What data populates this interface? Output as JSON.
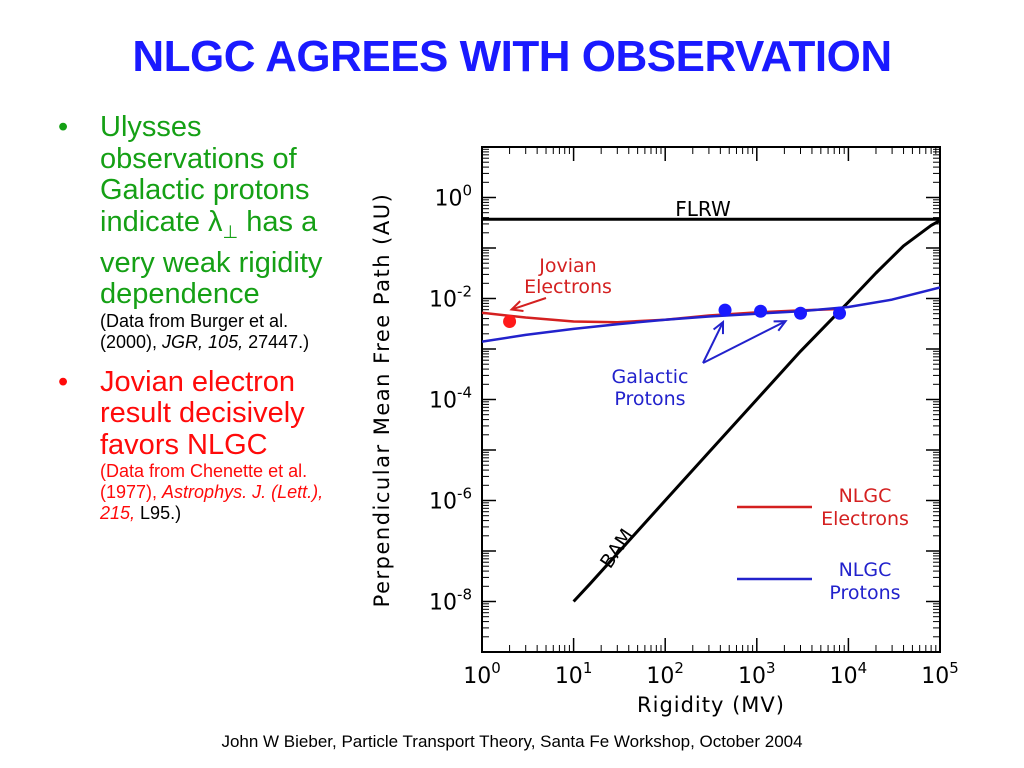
{
  "slide": {
    "title": "NLGC AGREES WITH OBSERVATION",
    "footer": "John W Bieber, Particle Transport Theory, Santa Fe Workshop, October 2004"
  },
  "bullets": [
    {
      "marker": "•",
      "text_before": "Ulysses observations of Galactic protons indicate ",
      "symbol": "λ",
      "subscript": "⊥",
      "text_after": " has a very weak rigidity dependence",
      "cite_plain": "(Data from Burger et al. (2000), ",
      "cite_italic": "JGR, 105,",
      "cite_end": " 27447.)",
      "color": "#15a015"
    },
    {
      "marker": "•",
      "text": "Jovian electron result decisively favors NLGC",
      "cite_plain": "(Data from Chenette et al. (1977), ",
      "cite_italic": "Astrophys. J. (Lett.), 215,",
      "cite_end": " L95.)",
      "color": "#ff0a0a"
    }
  ],
  "chart_data": {
    "type": "line",
    "xlabel": "Rigidity (MV)",
    "ylabel": "Perpendicular Mean Free Path (AU)",
    "xscale": "log",
    "yscale": "log",
    "xlim": [
      1,
      100000
    ],
    "ylim": [
      1e-09,
      10
    ],
    "x_tick_labels": [
      {
        "base": "10",
        "exp": "0",
        "value": 1
      },
      {
        "base": "10",
        "exp": "1",
        "value": 10
      },
      {
        "base": "10",
        "exp": "2",
        "value": 100
      },
      {
        "base": "10",
        "exp": "3",
        "value": 1000
      },
      {
        "base": "10",
        "exp": "4",
        "value": 10000
      },
      {
        "base": "10",
        "exp": "5",
        "value": 100000
      }
    ],
    "y_tick_labels": [
      {
        "base": "10",
        "exp": "0",
        "value": 1
      },
      {
        "base": "10",
        "exp": "-2",
        "value": 0.01
      },
      {
        "base": "10",
        "exp": "-4",
        "value": 0.0001
      },
      {
        "base": "10",
        "exp": "-6",
        "value": 1e-06
      },
      {
        "base": "10",
        "exp": "-8",
        "value": 1e-08
      }
    ],
    "series": [
      {
        "name": "FLRW",
        "color": "#000000",
        "x": [
          1,
          100000
        ],
        "y": [
          0.37,
          0.37
        ]
      },
      {
        "name": "BAM",
        "color": "#000000",
        "x": [
          10,
          15,
          30,
          100,
          300,
          1000,
          3000,
          10000,
          20000,
          40000,
          80000,
          100000
        ],
        "y": [
          1e-08,
          2.2e-08,
          8.9e-08,
          1e-06,
          9e-06,
          0.0001,
          0.0009,
          0.0085,
          0.032,
          0.11,
          0.28,
          0.35
        ]
      },
      {
        "name": "NLGC Electrons",
        "color": "#d42020",
        "x": [
          1,
          3,
          10,
          30,
          100,
          300,
          1000,
          3000,
          8000
        ],
        "y": [
          0.0052,
          0.0042,
          0.0035,
          0.0034,
          0.0038,
          0.0046,
          0.0053,
          0.0058,
          0.0062
        ]
      },
      {
        "name": "NLGC Protons",
        "color": "#2222cc",
        "x": [
          1,
          3,
          10,
          30,
          100,
          300,
          1000,
          3000,
          10000,
          30000,
          100000
        ],
        "y": [
          0.0014,
          0.0019,
          0.0025,
          0.0031,
          0.0038,
          0.0044,
          0.005,
          0.0056,
          0.0068,
          0.0095,
          0.0165
        ]
      }
    ],
    "points": [
      {
        "group": "Jovian Electrons",
        "color": "#ff1a1a",
        "x": 2,
        "y": 0.0035
      },
      {
        "group": "Galactic Protons",
        "color": "#1a1aff",
        "x": 450,
        "y": 0.0059
      },
      {
        "group": "Galactic Protons",
        "color": "#1a1aff",
        "x": 1100,
        "y": 0.0056
      },
      {
        "group": "Galactic Protons",
        "color": "#1a1aff",
        "x": 3000,
        "y": 0.0051
      },
      {
        "group": "Galactic Protons",
        "color": "#1a1aff",
        "x": 8000,
        "y": 0.0051
      }
    ],
    "annotations": {
      "flrw": "FLRW",
      "bam": "BAM",
      "jovian_line1": "Jovian",
      "jovian_line2": "Electrons",
      "galactic_line1": "Galactic",
      "galactic_line2": "Protons",
      "legend_electrons_line1": "NLGC",
      "legend_electrons_line2": "Electrons",
      "legend_protons_line1": "NLGC",
      "legend_protons_line2": "Protons"
    },
    "legend_placement": "bottom-right",
    "grid": false
  }
}
